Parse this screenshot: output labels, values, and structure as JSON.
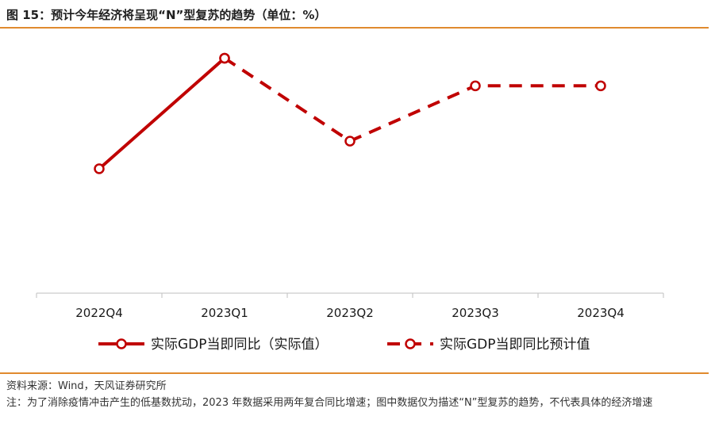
{
  "header": {
    "title": "图 15：预计今年经济将呈现“N”型复苏的趋势（单位：%）"
  },
  "chart_data": {
    "type": "line",
    "categories": [
      "2022Q4",
      "2023Q1",
      "2023Q2",
      "2023Q3",
      "2023Q4"
    ],
    "series": [
      {
        "name": "实际GDP当即同比（实际值）",
        "style": "solid",
        "color": "#c00000",
        "values": [
          2.9,
          4.5,
          null,
          null,
          null
        ]
      },
      {
        "name": "实际GDP当即同比预计值",
        "style": "dashed",
        "color": "#c00000",
        "values": [
          null,
          4.5,
          3.3,
          4.1,
          4.1
        ]
      }
    ],
    "ylim": [
      1.1,
      4.7
    ],
    "y_axis_visible": false,
    "grid": false,
    "legend_position": "bottom"
  },
  "footer": {
    "source": "资料来源：Wind，天风证券研究所",
    "note": "注：为了消除疫情冲击产生的低基数扰动，2023 年数据采用两年复合同比增速；图中数据仅为描述“N”型复苏的趋势，不代表具体的经济增速"
  }
}
